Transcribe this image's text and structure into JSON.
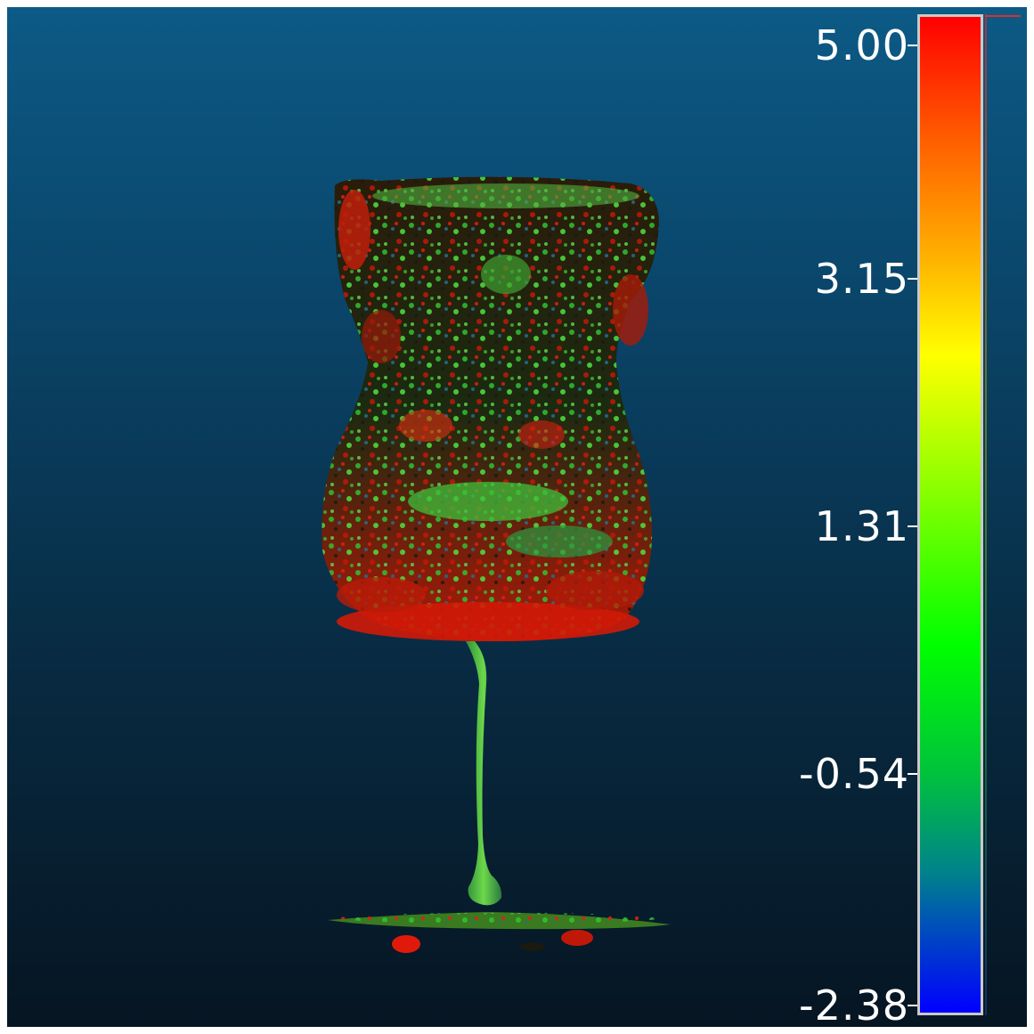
{
  "scale": {
    "colors": {
      "max": "#ff0000",
      "high": "#ff6a00",
      "mid_high": "#ffff00",
      "mid": "#00ff00",
      "mid_low": "#00828c",
      "min": "#0000ff",
      "background_top": "#0c5a86",
      "background_bottom": "#061522"
    },
    "ticks": [
      {
        "label": "5.00",
        "value": 5.0
      },
      {
        "label": "3.15",
        "value": 3.15
      },
      {
        "label": "1.31",
        "value": 1.31
      },
      {
        "label": "-0.54",
        "value": -0.54
      },
      {
        "label": "-2.38",
        "value": -2.38
      }
    ]
  },
  "model": {
    "icon": "wine-glass-point-cloud"
  }
}
